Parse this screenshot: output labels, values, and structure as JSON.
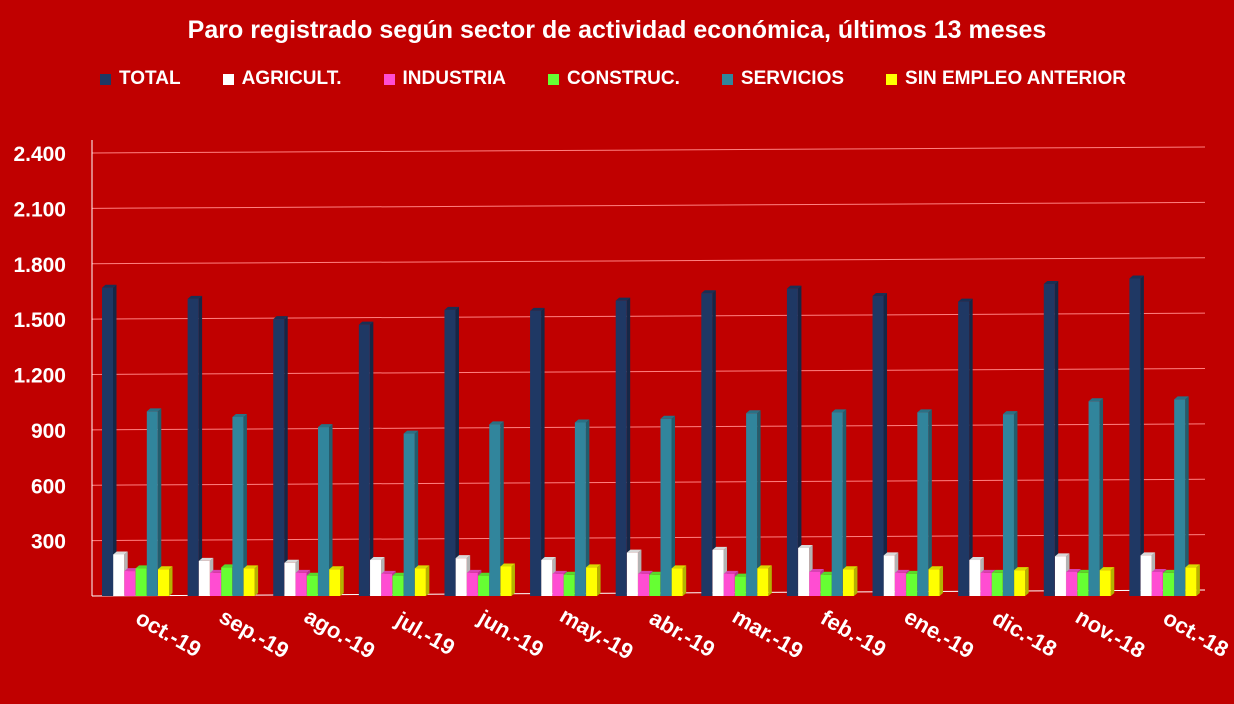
{
  "chart_data": {
    "type": "bar",
    "title": "Paro registrado según sector de actividad económica, últimos 13 meses",
    "categories": [
      "oct.-19",
      "sep.-19",
      "ago.-19",
      "jul.-19",
      "jun.-19",
      "may.-19",
      "abr.-19",
      "mar.-19",
      "feb.-19",
      "ene.-19",
      "dic.-18",
      "nov.-18",
      "oct.-18"
    ],
    "ylim": [
      0,
      2400
    ],
    "yticks": [
      0,
      300,
      600,
      900,
      1200,
      1500,
      1800,
      2100,
      2400
    ],
    "ytick_labels": [
      "",
      "300",
      "600",
      "900",
      "1.200",
      "1.500",
      "1.800",
      "2.100",
      "2.400"
    ],
    "grid": true,
    "legend_position": "top",
    "series": [
      {
        "name": "TOTAL",
        "color": "#1f3864",
        "values": [
          1670,
          1610,
          1500,
          1470,
          1550,
          1545,
          1600,
          1640,
          1665,
          1625,
          1595,
          1690,
          1720
        ]
      },
      {
        "name": "AGRICULT.",
        "color": "#ffffff",
        "values": [
          225,
          190,
          180,
          195,
          205,
          195,
          235,
          250,
          260,
          220,
          195,
          215,
          220
        ]
      },
      {
        "name": "INDUSTRIA",
        "color": "#ff4dd2",
        "values": [
          135,
          125,
          125,
          120,
          125,
          120,
          120,
          120,
          130,
          125,
          125,
          130,
          130
        ]
      },
      {
        "name": "CONSTRUC.",
        "color": "#66ff33",
        "values": [
          150,
          155,
          110,
          110,
          110,
          115,
          115,
          105,
          115,
          120,
          125,
          125,
          125
        ]
      },
      {
        "name": "SERVICIOS",
        "color": "#31859c",
        "values": [
          1000,
          970,
          915,
          880,
          930,
          940,
          960,
          990,
          995,
          995,
          985,
          1055,
          1065
        ]
      },
      {
        "name": "SIN EMPLEO ANTERIOR",
        "color": "#ffff00",
        "values": [
          145,
          150,
          145,
          150,
          160,
          155,
          150,
          150,
          145,
          145,
          140,
          140,
          155
        ]
      }
    ]
  }
}
